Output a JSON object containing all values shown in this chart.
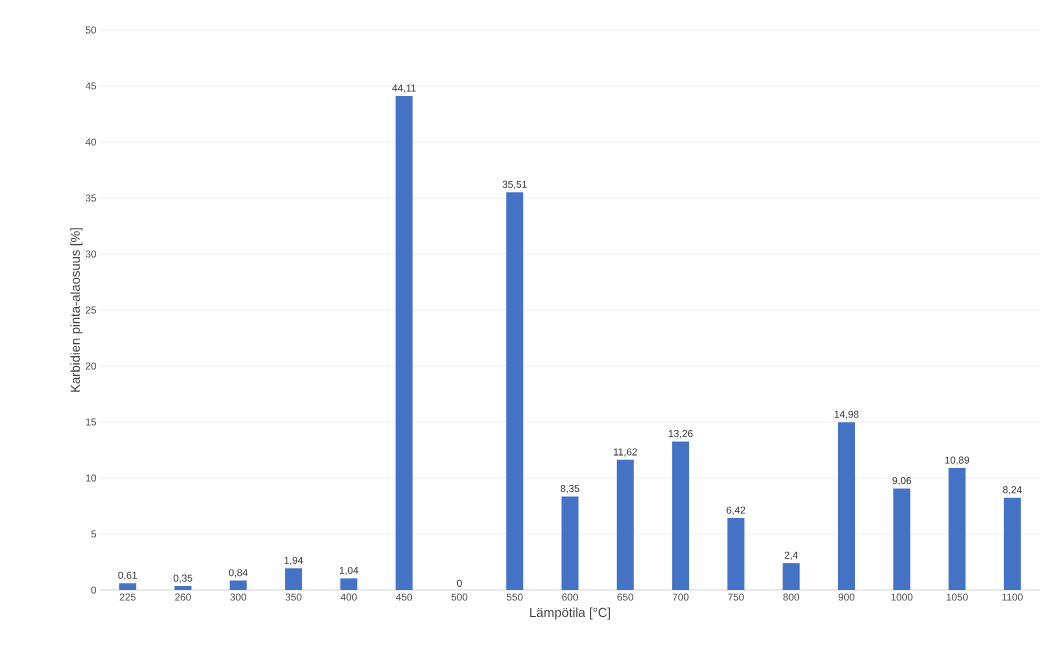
{
  "chart_data": {
    "type": "bar",
    "xlabel": "Lämpötila [°C]",
    "ylabel": "Karbidien pinta-alaosuus [%]",
    "categories": [
      "225",
      "260",
      "300",
      "350",
      "400",
      "450",
      "500",
      "550",
      "600",
      "650",
      "700",
      "750",
      "800",
      "900",
      "1000",
      "1050",
      "1100"
    ],
    "values": [
      0.61,
      0.35,
      0.84,
      1.94,
      1.04,
      44.11,
      0,
      35.51,
      8.35,
      11.62,
      13.26,
      6.42,
      2.4,
      14.98,
      9.06,
      10.89,
      8.24
    ],
    "value_labels": [
      "0,61",
      "0,35",
      "0,84",
      "1,94",
      "1,04",
      "44,11",
      "0",
      "35,51",
      "8,35",
      "11,62",
      "13,26",
      "6,42",
      "2,4",
      "14,98",
      "9,06",
      "10,89",
      "8,24"
    ],
    "color": "#4472c4",
    "ylim": [
      0,
      50
    ],
    "yticks": [
      0,
      5,
      10,
      15,
      20,
      25,
      30,
      35,
      40,
      45,
      50
    ],
    "grid": "y"
  }
}
